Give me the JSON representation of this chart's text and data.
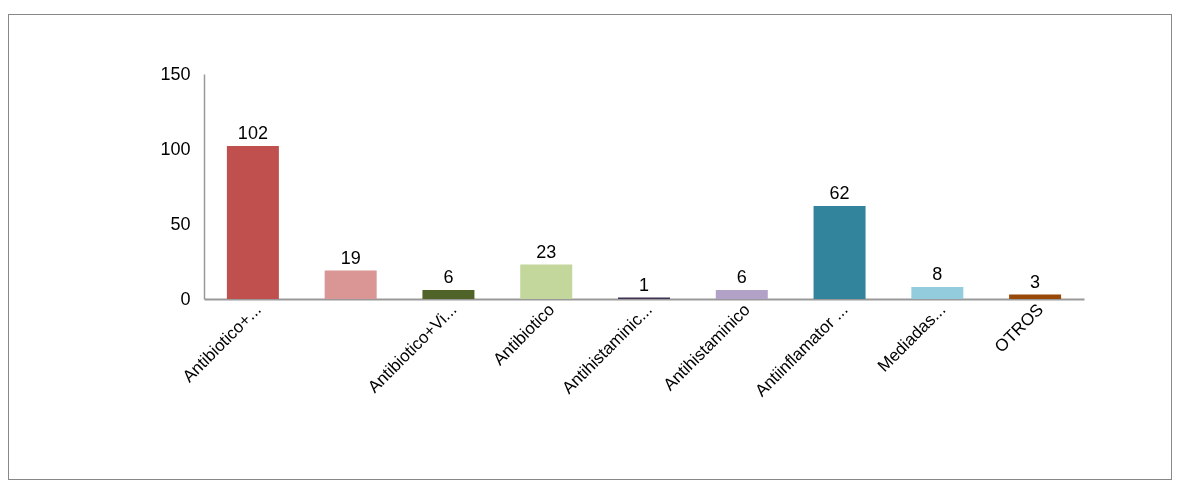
{
  "chart_data": {
    "type": "bar",
    "categories": [
      "Antibiotico+...",
      null,
      "Antibiotico+Vi...",
      "Antibiotico",
      "Antihistaminic...",
      "Antihistaminico",
      "Antiinflamator ...",
      "Mediadas...",
      "OTROS"
    ],
    "values": [
      102,
      19,
      6,
      23,
      1,
      6,
      62,
      8,
      3
    ],
    "colors": [
      "#c0504d",
      "#d99694",
      "#4f6228",
      "#c3d69b",
      "#3f3151",
      "#b3a2c7",
      "#31849b",
      "#93cddd",
      "#984807"
    ],
    "ylim": [
      0,
      150
    ],
    "yticks": [
      0,
      50,
      100,
      150
    ],
    "grid": false,
    "data_labels": true
  }
}
